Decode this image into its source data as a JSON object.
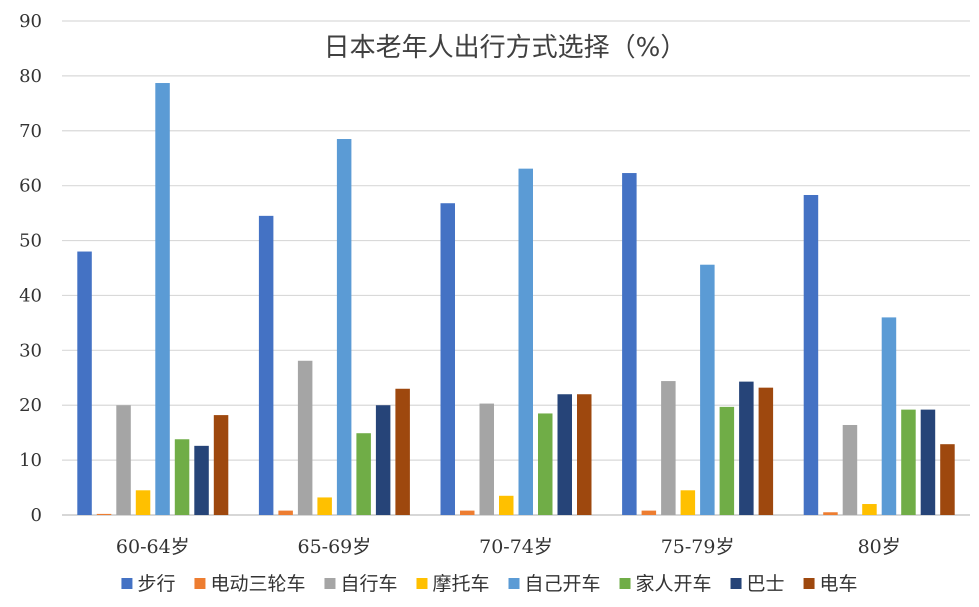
{
  "chart_data": {
    "type": "bar",
    "title": "日本老年人出行方式选择（%）",
    "xlabel": "",
    "ylabel": "",
    "ylim": [
      0,
      90
    ],
    "ytick_step": 10,
    "grid": true,
    "legend_position": "bottom",
    "categories": [
      "60-64岁",
      "65-69岁",
      "70-74岁",
      "75-79岁",
      "80岁"
    ],
    "series": [
      {
        "name": "步行",
        "color": "#4472C4",
        "values": [
          48,
          54.5,
          56.8,
          62.3,
          58.3
        ]
      },
      {
        "name": "电动三轮车",
        "color": "#ED7D31",
        "values": [
          0.2,
          0.8,
          0.8,
          0.8,
          0.5
        ]
      },
      {
        "name": "自行车",
        "color": "#A5A5A5",
        "values": [
          20,
          28.1,
          20.3,
          24.4,
          16.4
        ]
      },
      {
        "name": "摩托车",
        "color": "#FFC000",
        "values": [
          4.5,
          3.2,
          3.5,
          4.5,
          2
        ]
      },
      {
        "name": "自己开车",
        "color": "#5B9BD5",
        "values": [
          78.7,
          68.5,
          63.1,
          45.6,
          36
        ]
      },
      {
        "name": "家人开车",
        "color": "#70AD47",
        "values": [
          13.8,
          14.9,
          18.5,
          19.7,
          19.2
        ]
      },
      {
        "name": "巴士",
        "color": "#264478",
        "values": [
          12.6,
          20,
          22,
          24.3,
          19.2
        ]
      },
      {
        "name": "电车",
        "color": "#9E480E",
        "values": [
          18.2,
          23,
          22,
          23.2,
          12.9
        ]
      }
    ]
  }
}
